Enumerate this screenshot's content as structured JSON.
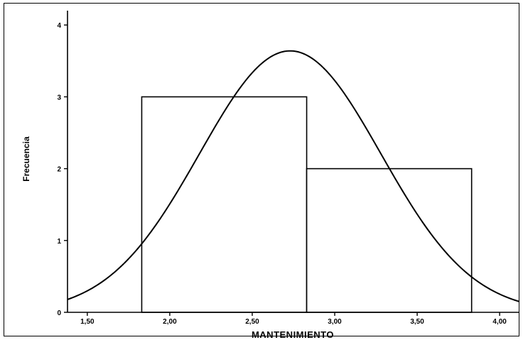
{
  "chart_data": {
    "type": "bar",
    "subtype": "histogram-with-normal-curve",
    "xlabel": "MANTENIMIENTO",
    "ylabel": "Frecuencia",
    "xlim": [
      1.38,
      4.12
    ],
    "ylim": [
      0,
      4.2
    ],
    "x_ticks": [
      {
        "value": 1.5,
        "label": "1,50"
      },
      {
        "value": 2.0,
        "label": "2,00"
      },
      {
        "value": 2.5,
        "label": "2,50"
      },
      {
        "value": 3.0,
        "label": "3,00"
      },
      {
        "value": 3.5,
        "label": "3,50"
      },
      {
        "value": 4.0,
        "label": "4,00"
      }
    ],
    "y_ticks": [
      {
        "value": 0,
        "label": "0"
      },
      {
        "value": 1,
        "label": "1"
      },
      {
        "value": 2,
        "label": "2"
      },
      {
        "value": 3,
        "label": "3"
      },
      {
        "value": 4,
        "label": "4"
      }
    ],
    "bins": [
      {
        "start": 1.83,
        "end": 2.83,
        "count": 3
      },
      {
        "start": 2.83,
        "end": 3.83,
        "count": 2
      }
    ],
    "normal_curve": {
      "mean": 2.73,
      "sd": 0.55,
      "peak": 3.64
    },
    "grid": false,
    "legend": "none"
  },
  "colors": {
    "line": "#000000",
    "bar_fill": "#ffffff",
    "background": "#ffffff"
  }
}
